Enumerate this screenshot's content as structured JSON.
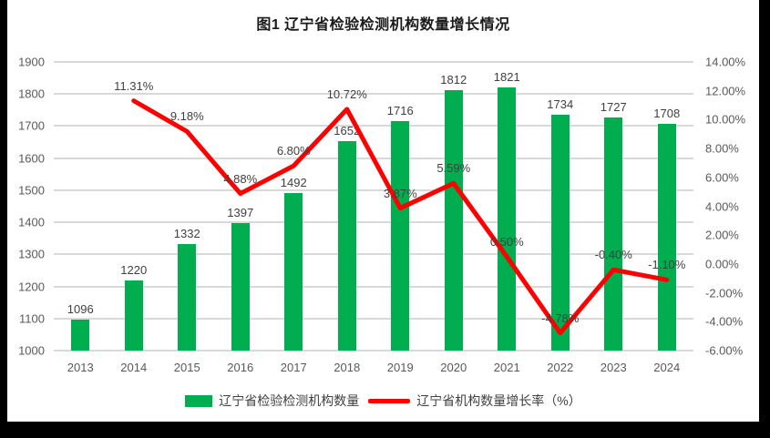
{
  "title": "图1 辽宁省检验检测机构数量增长情况",
  "chart_data": {
    "type": "bar",
    "subtype": "combo-bar-line-dual-axis",
    "categories": [
      "2013",
      "2014",
      "2015",
      "2016",
      "2017",
      "2018",
      "2019",
      "2020",
      "2021",
      "2022",
      "2023",
      "2024"
    ],
    "series": [
      {
        "name": "辽宁省检验检测机构数量",
        "type": "bar",
        "axis": "left",
        "color": "#00AE50",
        "values": [
          1096,
          1220,
          1332,
          1397,
          1492,
          1652,
          1716,
          1812,
          1821,
          1734,
          1727,
          1708
        ],
        "labels": [
          "1096",
          "1220",
          "1332",
          "1397",
          "1492",
          "1652",
          "1716",
          "1812",
          "1821",
          "1734",
          "1727",
          "1708"
        ]
      },
      {
        "name": "辽宁省机构数量增长率（%）",
        "type": "line",
        "axis": "right",
        "color": "#FF0000",
        "values": [
          null,
          11.31,
          9.18,
          4.88,
          6.8,
          10.72,
          3.87,
          5.59,
          0.5,
          -4.78,
          -0.4,
          -1.1
        ],
        "labels": [
          null,
          "11.31%",
          "9.18%",
          "4.88%",
          "6.80%",
          "10.72%",
          "3.87%",
          "5.59%",
          "0.50%",
          "-4.78%",
          "-0.40%",
          "-1.10%"
        ]
      }
    ],
    "left_axis": {
      "min": 1000,
      "max": 1900,
      "step": 100,
      "ticks": [
        "1000",
        "1100",
        "1200",
        "1300",
        "1400",
        "1500",
        "1600",
        "1700",
        "1800",
        "1900"
      ]
    },
    "right_axis": {
      "min": -6,
      "max": 14,
      "step": 2,
      "ticks": [
        "-6.00%",
        "-4.00%",
        "-2.00%",
        "0.00%",
        "2.00%",
        "4.00%",
        "6.00%",
        "8.00%",
        "10.00%",
        "12.00%",
        "14.00%"
      ]
    },
    "grid": true,
    "gridline_color": "#d9d9d9",
    "legend_position": "bottom",
    "xlabel": "",
    "ylabel": ""
  }
}
